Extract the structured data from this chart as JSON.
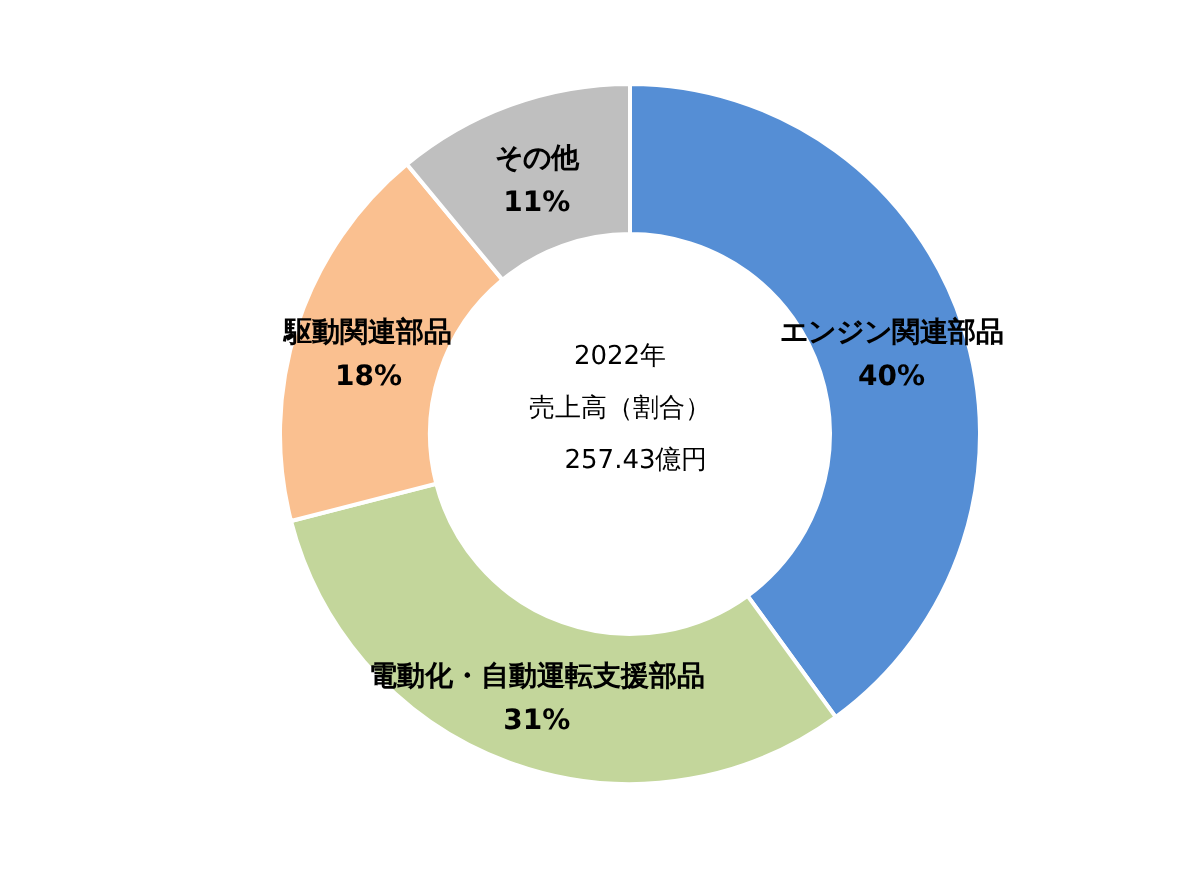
{
  "chart_data": {
    "type": "donut",
    "categories": [
      "エンジン関連部品",
      "電動化・自動運転支援部品",
      "駆動関連部品",
      "その他"
    ],
    "values": [
      40,
      31,
      18,
      11
    ],
    "colors": [
      "#558ed5",
      "#c3d69b",
      "#fac090",
      "#bfbfbf"
    ],
    "value_labels": [
      "40%",
      "31%",
      "18%",
      "11%"
    ],
    "annotations": [
      "2022年",
      "売上高（割合）",
      "257.43億円"
    ]
  }
}
